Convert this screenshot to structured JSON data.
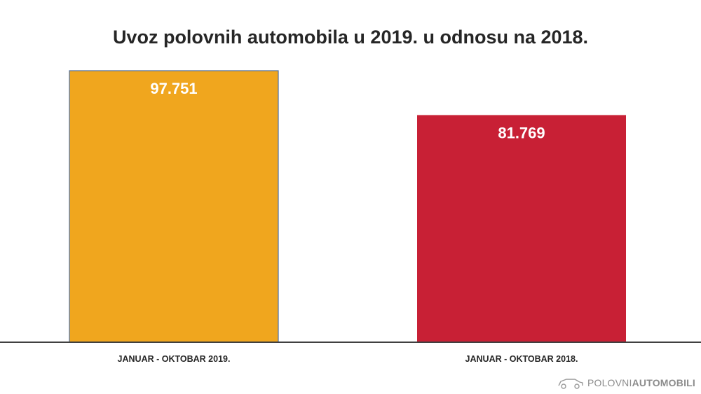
{
  "chart_data": {
    "type": "bar",
    "title": "Uvoz polovnih automobila u 2019. u odnosu na 2018.",
    "categories": [
      "JANUAR - OKTOBAR 2019.",
      "JANUAR - OKTOBAR 2018."
    ],
    "values": [
      97751,
      81769
    ],
    "data_labels": [
      "97.751",
      "81.769"
    ],
    "colors": [
      "#F0A61E",
      "#C82035"
    ],
    "ylim": [
      0,
      97751
    ],
    "grid": false,
    "legend": "none"
  },
  "branding": {
    "logo_light": "POLOVNI",
    "logo_bold": "AUTOMOBILI"
  }
}
